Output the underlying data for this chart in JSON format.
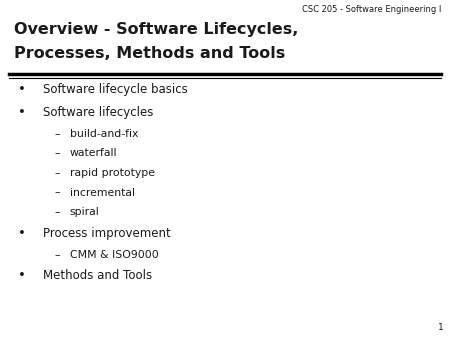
{
  "background_color": "#ffffff",
  "header_text_line1": "Overview - Software Lifecycles,",
  "header_text_line2": "Processes, Methods and Tools",
  "course_label": "CSC 205 - Software Engineering I",
  "slide_number": "1",
  "bullet_items": [
    {
      "level": 0,
      "text": "Software lifecycle basics"
    },
    {
      "level": 0,
      "text": "Software lifecycles"
    },
    {
      "level": 1,
      "text": "build-and-fix"
    },
    {
      "level": 1,
      "text": "waterfall"
    },
    {
      "level": 1,
      "text": "rapid prototype"
    },
    {
      "level": 1,
      "text": "incremental"
    },
    {
      "level": 1,
      "text": "spiral"
    },
    {
      "level": 0,
      "text": "Process improvement"
    },
    {
      "level": 1,
      "text": "CMM & ISO9000"
    },
    {
      "level": 0,
      "text": "Methods and Tools"
    }
  ],
  "title_fontsize": 11.5,
  "body_fontsize": 8.5,
  "sub_fontsize": 7.8,
  "course_fontsize": 6.0,
  "slide_num_fontsize": 6.5,
  "text_color": "#1a1a1a",
  "line_color": "#000000",
  "bullet_char": "•",
  "dash_char": "–"
}
